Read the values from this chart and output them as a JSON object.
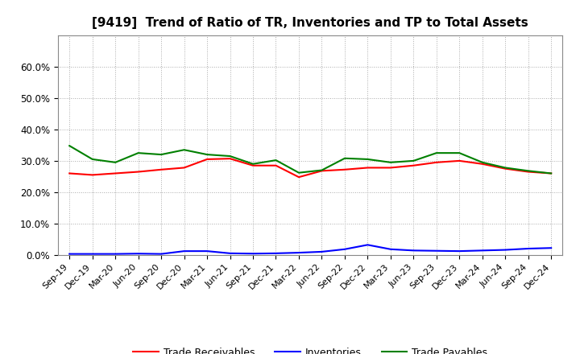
{
  "title": "[9419]  Trend of Ratio of TR, Inventories and TP to Total Assets",
  "x_labels": [
    "Sep-19",
    "Dec-19",
    "Mar-20",
    "Jun-20",
    "Sep-20",
    "Dec-20",
    "Mar-21",
    "Jun-21",
    "Sep-21",
    "Dec-21",
    "Mar-22",
    "Jun-22",
    "Sep-22",
    "Dec-22",
    "Mar-23",
    "Jun-23",
    "Sep-23",
    "Dec-23",
    "Mar-24",
    "Jun-24",
    "Sep-24",
    "Dec-24"
  ],
  "trade_receivables": [
    0.26,
    0.255,
    0.26,
    0.265,
    0.272,
    0.278,
    0.305,
    0.307,
    0.285,
    0.285,
    0.248,
    0.268,
    0.272,
    0.278,
    0.278,
    0.285,
    0.295,
    0.3,
    0.29,
    0.275,
    0.265,
    0.26
  ],
  "inventories": [
    0.003,
    0.003,
    0.003,
    0.004,
    0.003,
    0.012,
    0.012,
    0.005,
    0.004,
    0.005,
    0.007,
    0.01,
    0.018,
    0.032,
    0.018,
    0.014,
    0.013,
    0.012,
    0.014,
    0.016,
    0.02,
    0.022
  ],
  "trade_payables": [
    0.348,
    0.305,
    0.295,
    0.325,
    0.32,
    0.335,
    0.32,
    0.315,
    0.29,
    0.302,
    0.262,
    0.27,
    0.308,
    0.305,
    0.295,
    0.3,
    0.325,
    0.325,
    0.295,
    0.278,
    0.268,
    0.26
  ],
  "color_tr": "#ff0000",
  "color_inv": "#0000ff",
  "color_tp": "#008000",
  "ylim": [
    0.0,
    0.7
  ],
  "yticks": [
    0.0,
    0.1,
    0.2,
    0.3,
    0.4,
    0.5,
    0.6
  ],
  "ytick_labels": [
    "0.0%",
    "10.0%",
    "20.0%",
    "30.0%",
    "40.0%",
    "50.0%",
    "60.0%"
  ],
  "legend_tr": "Trade Receivables",
  "legend_inv": "Inventories",
  "legend_tp": "Trade Payables",
  "bg_color": "#ffffff",
  "plot_bg_color": "#ffffff",
  "title_fontsize": 11,
  "axis_fontsize": 8,
  "legend_fontsize": 9
}
